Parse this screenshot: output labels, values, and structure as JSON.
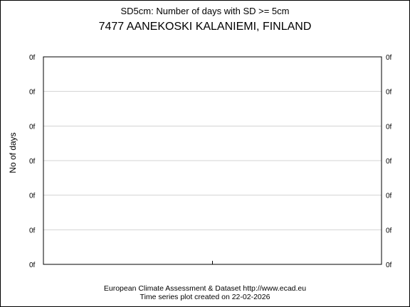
{
  "chart_data": {
    "type": "line",
    "subtitle": "SD5cm: Number of days with SD >= 5cm",
    "title": "7477 AANEKOSKI KALANIEMI, FINLAND",
    "ylabel": "No of days",
    "xlabel": "",
    "y_tick_labels": [
      "0f",
      "0f",
      "0f",
      "0f",
      "0f",
      "0f",
      "0f"
    ],
    "x_ticks": [
      0.5
    ],
    "grid": true,
    "series": []
  },
  "footer": {
    "line1": "European Climate Assessment & Dataset  http://www.ecad.eu",
    "line2": "Time series plot created on 22-02-2026"
  },
  "colors": {
    "frame": "#000000",
    "grid": "#d3d3d3",
    "background": "#ffffff"
  }
}
